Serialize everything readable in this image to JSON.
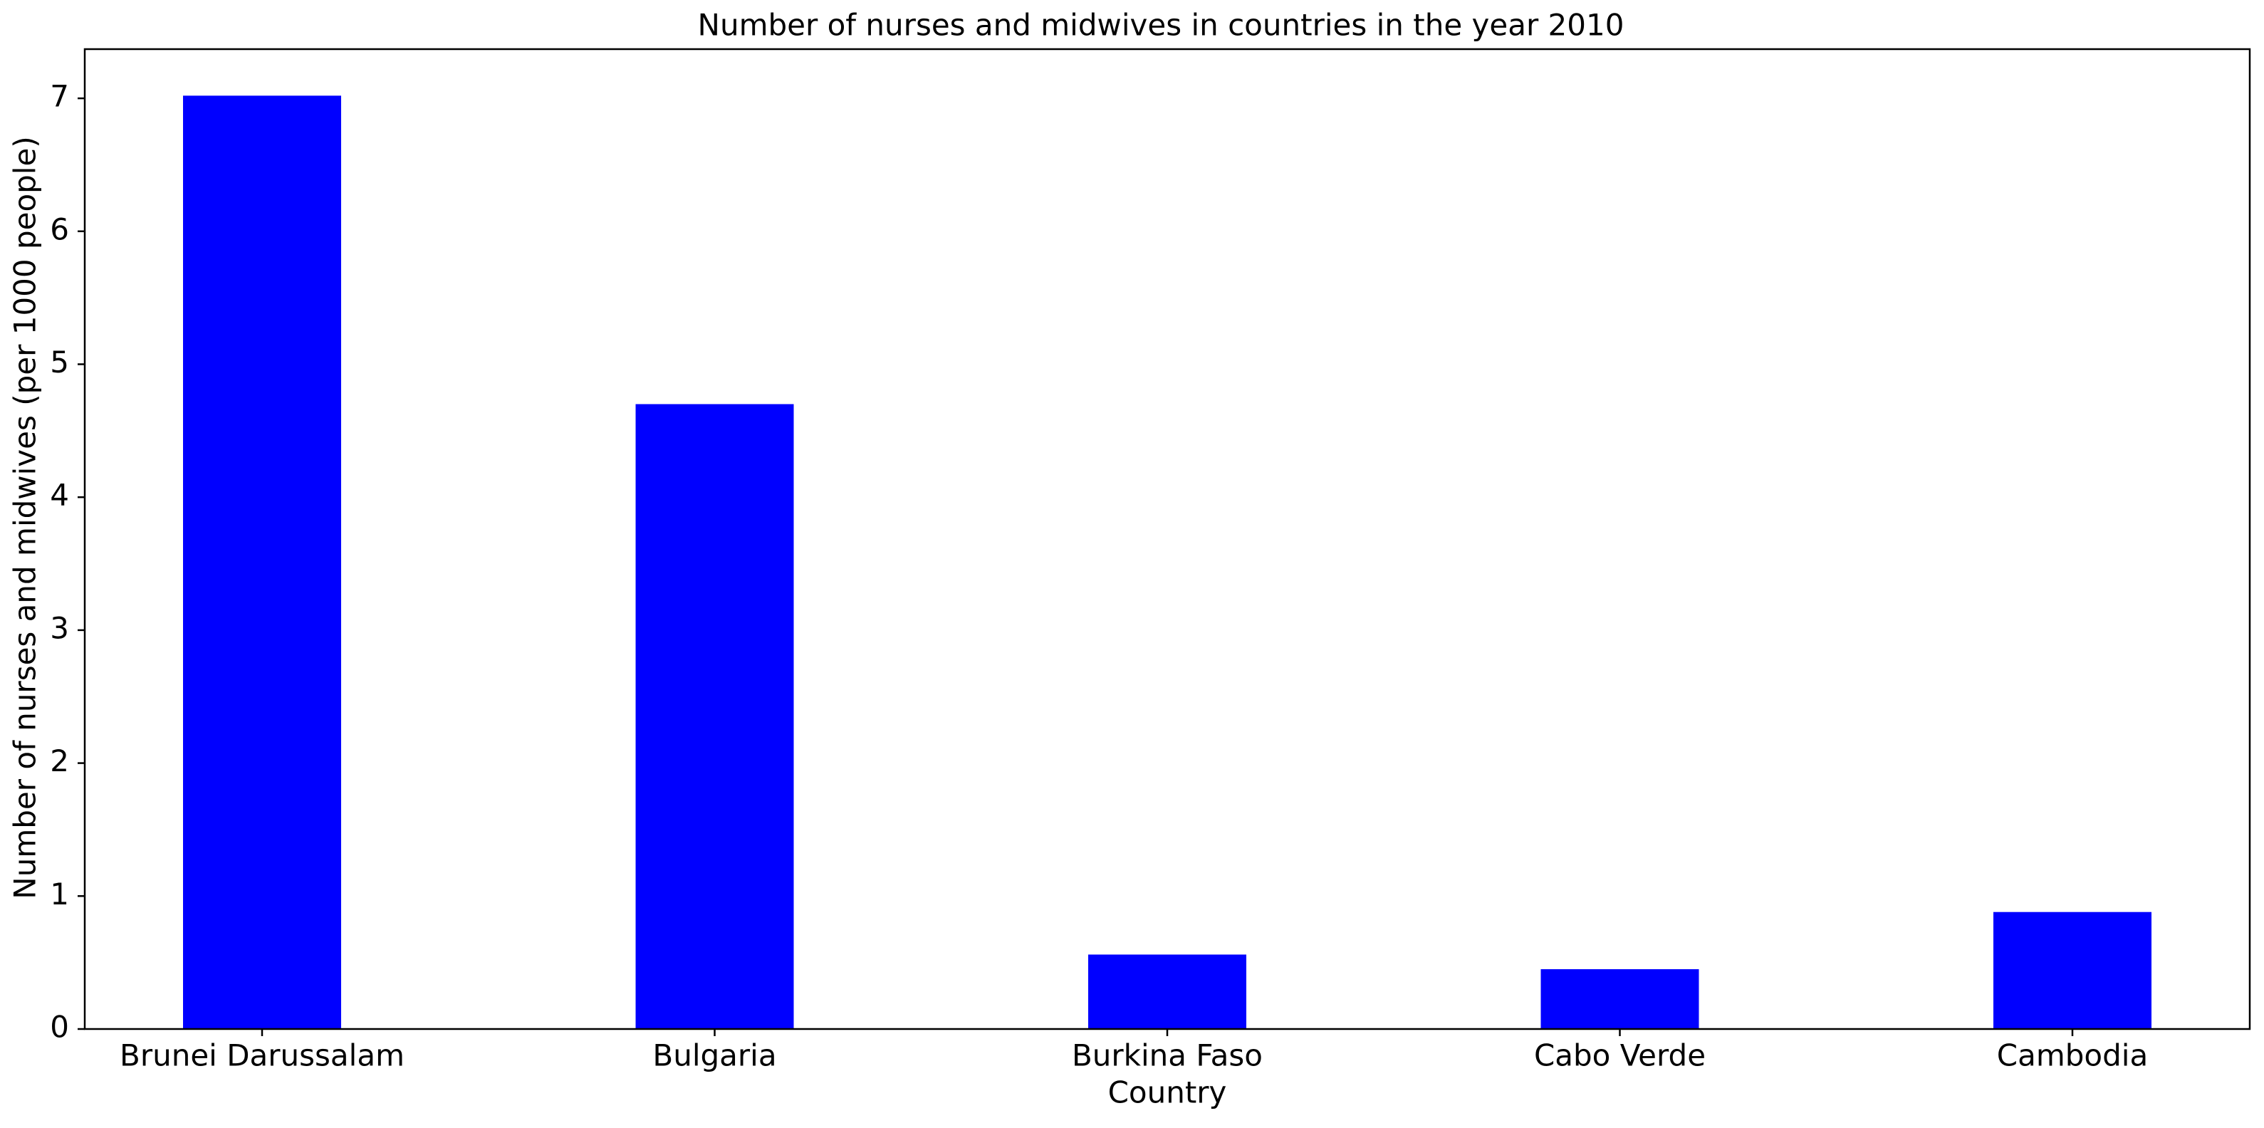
{
  "chart_data": {
    "type": "bar",
    "title": "Number of nurses and midwives in countries in the year 2010",
    "xlabel": "Country",
    "ylabel": "Number of nurses and midwives (per 1000 people)",
    "categories": [
      "Brunei Darussalam",
      "Bulgaria",
      "Burkina Faso",
      "Cabo Verde",
      "Cambodia"
    ],
    "values": [
      7.02,
      4.7,
      0.56,
      0.45,
      0.88
    ],
    "ylim": [
      0,
      7.37
    ],
    "yticks": [
      0,
      1,
      2,
      3,
      4,
      5,
      6,
      7
    ],
    "grid": false,
    "bar_color": "#0000ff"
  }
}
